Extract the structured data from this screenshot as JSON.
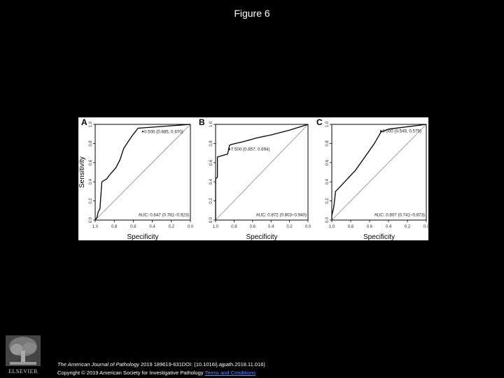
{
  "page": {
    "title": "Figure 6"
  },
  "footer": {
    "journal": "The American Journal of Pathology",
    "citation": " 2019 189619-631DOI: (10.1016/j.ajpath.2018.11.016)",
    "copyright": "Copyright © 2019 American Society for Investigative Pathology ",
    "terms_link": "Terms and Conditions"
  },
  "logo": {
    "icon": "elsevier-tree-icon",
    "text": "ELSEVIER"
  },
  "chart_data": [
    {
      "type": "line",
      "panel": "A",
      "xlabel": "Specificity",
      "ylabel": "Sensitivity",
      "xlim": [
        1.0,
        0.0
      ],
      "ylim": [
        0.0,
        1.0
      ],
      "xticks": [
        "1.0",
        "0.8",
        "0.6",
        "0.4",
        "0.2",
        "0.0"
      ],
      "yticks": [
        "0.0",
        "0.2",
        "0.4",
        "0.6",
        "0.8",
        "1.0"
      ],
      "series": [
        {
          "x": [
            1.0,
            0.98,
            0.97,
            0.95,
            0.93,
            0.88,
            0.85,
            0.78,
            0.74,
            0.7,
            0.62,
            0.55,
            0.0
          ],
          "y": [
            0.0,
            0.03,
            0.08,
            0.12,
            0.4,
            0.43,
            0.47,
            0.55,
            0.63,
            0.75,
            0.87,
            0.96,
            1.0
          ]
        }
      ],
      "annotations": [
        {
          "text": "0.500 (0.885, 0.870)",
          "x": 0.5,
          "y": 0.925
        },
        {
          "text": "AUC: 0.847 (0.781–0.923)",
          "x": 0.5,
          "y": 0.04
        }
      ]
    },
    {
      "type": "line",
      "panel": "B",
      "xlabel": "Specificity",
      "ylabel": "",
      "xlim": [
        1.0,
        0.0
      ],
      "ylim": [
        0.0,
        1.0
      ],
      "xticks": [
        "1.0",
        "0.8",
        "0.6",
        "0.4",
        "0.2",
        "0.0"
      ],
      "yticks": [
        "0.0",
        "0.2",
        "0.4",
        "0.6",
        "0.8",
        "1.0"
      ],
      "series": [
        {
          "x": [
            1.0,
            1.0,
            0.98,
            0.98,
            0.87,
            0.85,
            0.83,
            0.7,
            0.55,
            0.4,
            0.2,
            0.0
          ],
          "y": [
            0.0,
            0.43,
            0.45,
            0.66,
            0.69,
            0.78,
            0.79,
            0.82,
            0.86,
            0.89,
            0.94,
            1.0
          ]
        }
      ],
      "annotations": [
        {
          "text": "7.500 (0.857, 0.694)",
          "x": 0.85,
          "y": 0.74
        },
        {
          "text": "AUC: 0.872 (0.803–0.940)",
          "x": 0.5,
          "y": 0.04
        }
      ]
    },
    {
      "type": "line",
      "panel": "C",
      "xlabel": "Specificity",
      "ylabel": "",
      "xlim": [
        1.0,
        0.0
      ],
      "ylim": [
        0.0,
        1.0
      ],
      "xticks": [
        "1.0",
        "0.8",
        "0.6",
        "0.4",
        "0.2",
        "0.0"
      ],
      "yticks": [
        "0.0",
        "0.2",
        "0.4",
        "0.6",
        "0.8",
        "1.0"
      ],
      "series": [
        {
          "x": [
            1.0,
            1.0,
            0.98,
            0.96,
            0.94,
            0.75,
            0.55,
            0.48,
            0.4,
            0.0
          ],
          "y": [
            0.0,
            0.05,
            0.13,
            0.3,
            0.32,
            0.52,
            0.8,
            0.92,
            0.95,
            1.0
          ]
        }
      ],
      "annotations": [
        {
          "text": "0.500 (0.549, 0.579)",
          "x": 0.48,
          "y": 0.93
        },
        {
          "text": "AUC: 0.807 (0.741–0.873)",
          "x": 0.5,
          "y": 0.04
        }
      ]
    }
  ]
}
